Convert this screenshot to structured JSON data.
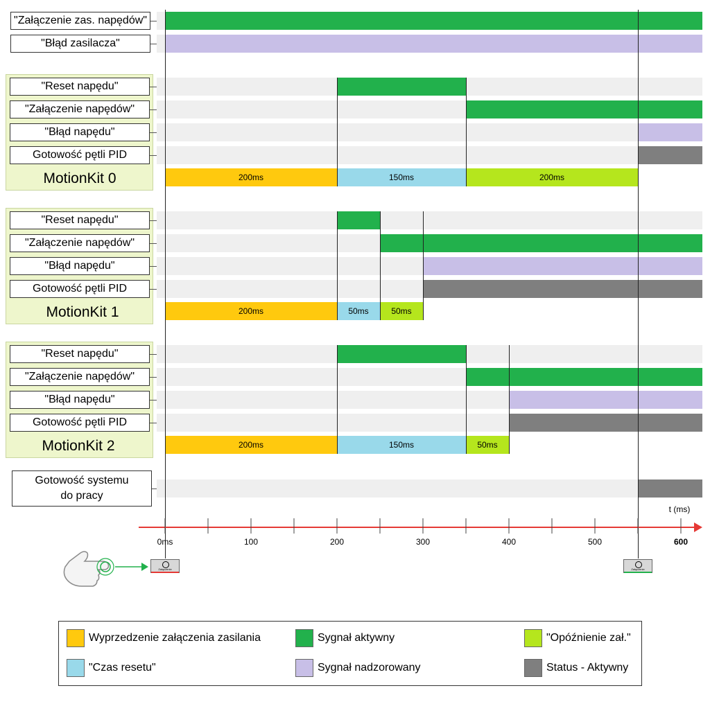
{
  "top_signals": [
    {
      "label": "\"Załączenie zas. napędów\""
    },
    {
      "label": "\"Błąd zasilacza\""
    }
  ],
  "groups": [
    {
      "name": "MotionKit 0",
      "signals": [
        "\"Reset napędu\"",
        "\"Załączenie napędów\"",
        "\"Błąd napędu\"",
        "Gotowość pętli PID"
      ],
      "durations": [
        {
          "label": "200ms",
          "start": 0,
          "end": 200,
          "kind": "lead"
        },
        {
          "label": "150ms",
          "start": 200,
          "end": 350,
          "kind": "reset"
        },
        {
          "label": "200ms",
          "start": 350,
          "end": 550,
          "kind": "delay"
        }
      ],
      "segments": [
        {
          "row": 0,
          "start": 200,
          "end": 350,
          "kind": "active"
        },
        {
          "row": 1,
          "start": 350,
          "end": 625,
          "kind": "active"
        },
        {
          "row": 2,
          "start": 550,
          "end": 625,
          "kind": "supervised"
        },
        {
          "row": 3,
          "start": 550,
          "end": 625,
          "kind": "status"
        }
      ],
      "vlines": [
        200,
        350,
        550
      ]
    },
    {
      "name": "MotionKit 1",
      "signals": [
        "\"Reset napędu\"",
        "\"Załączenie napędów\"",
        "\"Błąd napędu\"",
        "Gotowość pętli PID"
      ],
      "durations": [
        {
          "label": "200ms",
          "start": 0,
          "end": 200,
          "kind": "lead"
        },
        {
          "label": "50ms",
          "start": 200,
          "end": 250,
          "kind": "reset"
        },
        {
          "label": "50ms",
          "start": 250,
          "end": 300,
          "kind": "delay"
        }
      ],
      "segments": [
        {
          "row": 0,
          "start": 200,
          "end": 250,
          "kind": "active"
        },
        {
          "row": 1,
          "start": 250,
          "end": 625,
          "kind": "active"
        },
        {
          "row": 2,
          "start": 300,
          "end": 625,
          "kind": "supervised"
        },
        {
          "row": 3,
          "start": 300,
          "end": 625,
          "kind": "status"
        }
      ],
      "vlines": [
        200,
        250,
        300
      ]
    },
    {
      "name": "MotionKit 2",
      "signals": [
        "\"Reset napędu\"",
        "\"Załączenie napędów\"",
        "\"Błąd napędu\"",
        "Gotowość pętli PID"
      ],
      "durations": [
        {
          "label": "200ms",
          "start": 0,
          "end": 200,
          "kind": "lead"
        },
        {
          "label": "150ms",
          "start": 200,
          "end": 350,
          "kind": "reset"
        },
        {
          "label": "50ms",
          "start": 350,
          "end": 400,
          "kind": "delay"
        }
      ],
      "segments": [
        {
          "row": 0,
          "start": 200,
          "end": 350,
          "kind": "active"
        },
        {
          "row": 1,
          "start": 350,
          "end": 625,
          "kind": "active"
        },
        {
          "row": 2,
          "start": 400,
          "end": 625,
          "kind": "supervised"
        },
        {
          "row": 3,
          "start": 400,
          "end": 625,
          "kind": "status"
        }
      ],
      "vlines": [
        200,
        350,
        400
      ]
    }
  ],
  "system_ready": {
    "label_line1": "Gotowość systemu",
    "label_line2": "do pracy",
    "start": 550,
    "end": 625
  },
  "axis": {
    "unit_label": "t (ms)",
    "ticks": [
      "0ms",
      "100",
      "200",
      "300",
      "400",
      "500",
      "600"
    ],
    "tick_values": [
      0,
      100,
      200,
      300,
      400,
      500,
      600
    ],
    "minor_ticks": [
      50,
      150,
      250,
      350,
      450,
      550
    ],
    "min": 0,
    "max": 625,
    "marker_times": [
      0,
      550
    ]
  },
  "buttons": [
    {
      "caption": "Załączenie",
      "time": 0,
      "state_color": "#e53935"
    },
    {
      "caption": "Załączenie",
      "time": 550,
      "state_color": "#22b14c"
    }
  ],
  "legend": [
    {
      "label": "Wyprzedzenie załączenia zasilania",
      "kind": "lead"
    },
    {
      "label": "Sygnał aktywny",
      "kind": "active"
    },
    {
      "label": "\"Opóźnienie zał.\"",
      "kind": "delay"
    },
    {
      "label": "\"Czas resetu\"",
      "kind": "reset"
    },
    {
      "label": "Sygnał nadzorowany",
      "kind": "supervised"
    },
    {
      "label": "Status - Aktywny",
      "kind": "status"
    }
  ],
  "colors": {
    "active": "#22b14c",
    "supervised": "#c8bfe7",
    "status": "#7f7f7f",
    "lead": "#ffc90e",
    "reset": "#99d9ea",
    "delay": "#b5e61d",
    "axis": "#e53935",
    "lane": "#efefef"
  }
}
